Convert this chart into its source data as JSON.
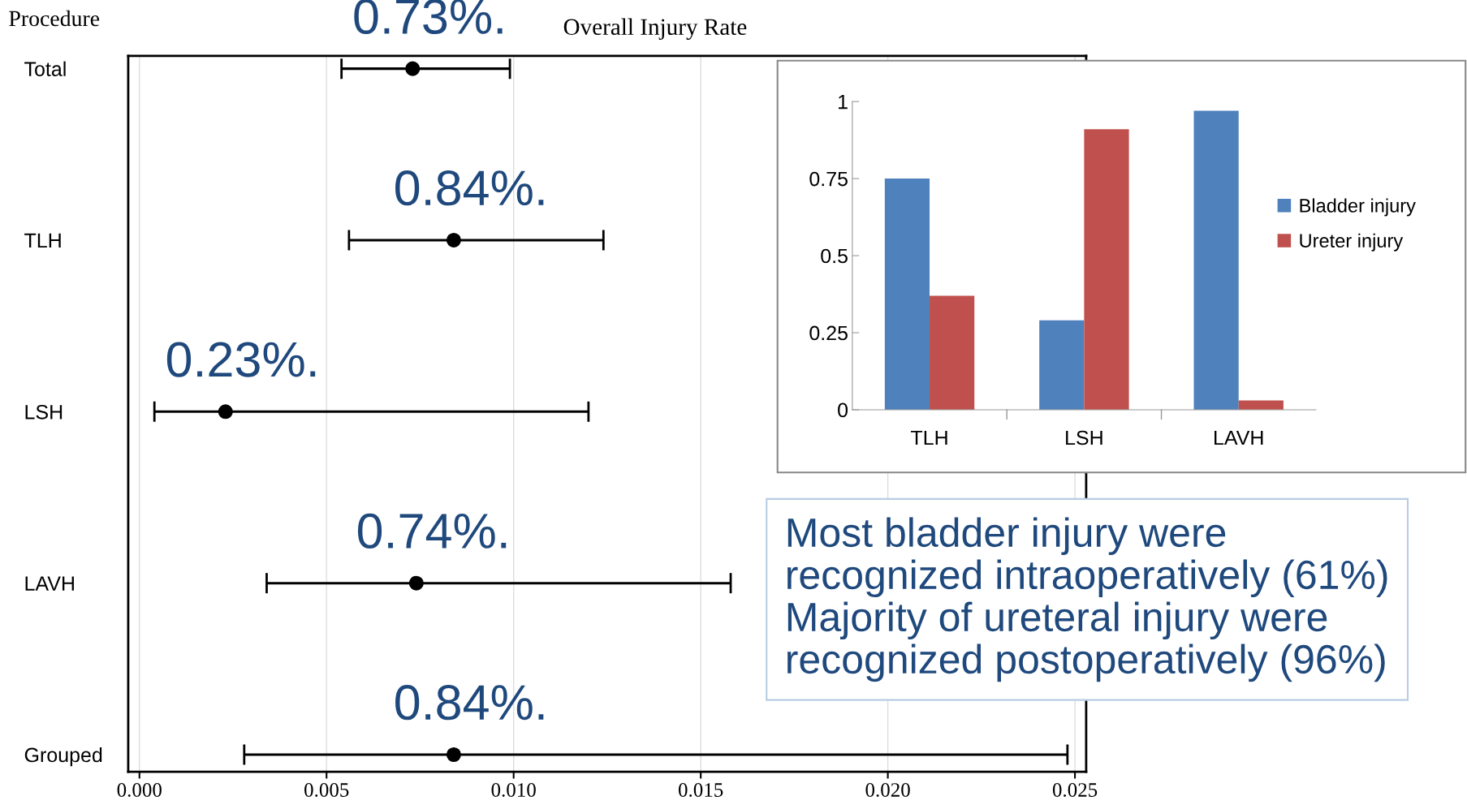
{
  "chart_data": [
    {
      "type": "scatter",
      "title": "Overall Injury Rate",
      "ylabel": "Procedure",
      "categories": [
        "Total",
        "TLH",
        "LSH",
        "LAVH",
        "Grouped"
      ],
      "orientation": "horizontal",
      "series": [
        {
          "color": "#000000",
          "values": [
            0.0073,
            0.0084,
            0.0023,
            0.0074,
            0.0084
          ],
          "errors": [
            [
              0.0054,
              0.0099
            ],
            [
              0.0056,
              0.0124
            ],
            [
              0.0004,
              0.012
            ],
            [
              0.0034,
              0.0158
            ],
            [
              0.0028,
              0.0248
            ]
          ]
        }
      ],
      "xlim": [
        -0.0003,
        0.0253
      ],
      "xticks": [
        {
          "value": 0,
          "label": "0.000"
        },
        {
          "value": 0.005,
          "label": "0.005"
        },
        {
          "value": 0.01,
          "label": "0.010"
        },
        {
          "value": 0.015,
          "label": "0.015"
        },
        {
          "value": 0.02,
          "label": "0.020"
        },
        {
          "value": 0.025,
          "label": "0.025"
        }
      ],
      "grid": "x",
      "marker": "circle",
      "annotations": [
        {
          "text": "0.73%.",
          "x": 0.0073,
          "y": "Total"
        },
        {
          "text": "0.84%.",
          "x": 0.0084,
          "y": "TLH"
        },
        {
          "text": "0.23%.",
          "x": 0.0023,
          "y": "LSH"
        },
        {
          "text": "0.74%.",
          "x": 0.0074,
          "y": "LAVH"
        },
        {
          "text": "0.84%.",
          "x": 0.0084,
          "y": "Grouped"
        }
      ]
    },
    {
      "type": "bar",
      "categories": [
        "TLH",
        "LSH",
        "LAVH"
      ],
      "series": [
        {
          "name": "Bladder injury",
          "color": "#4f81bd",
          "values": [
            0.75,
            0.29,
            0.97
          ]
        },
        {
          "name": "Ureter injury",
          "color": "#c0504d",
          "values": [
            0.37,
            0.91,
            0.03
          ]
        }
      ],
      "ylim": [
        0,
        1
      ],
      "yticks": [
        0,
        0.25,
        0.5,
        0.75,
        1
      ],
      "grid": false,
      "legend": "right",
      "annotations": [
        "Most bladder injury were\nrecognized intraoperatively (61%)\nMajority of ureteral injury were\nrecognized postoperatively (96%)"
      ]
    }
  ]
}
